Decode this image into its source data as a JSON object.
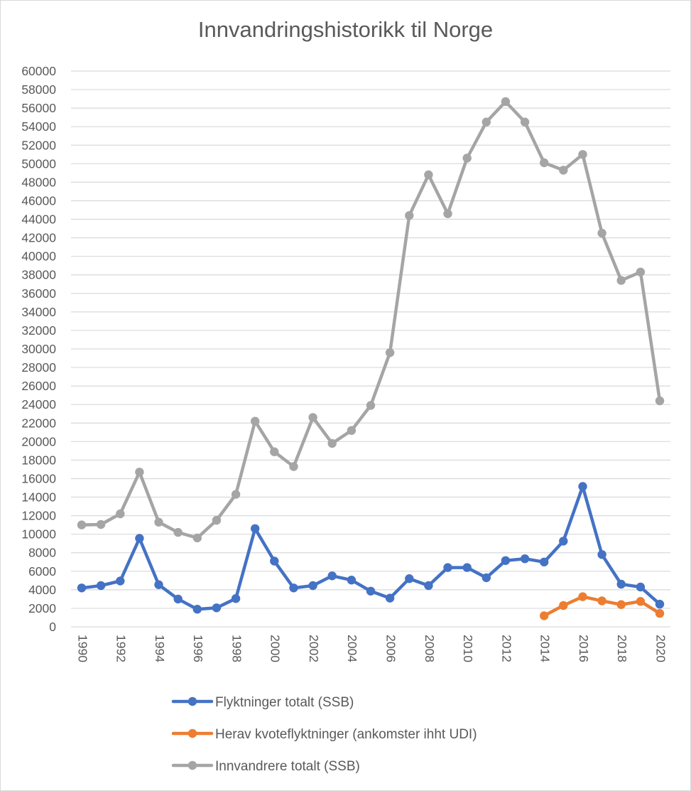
{
  "chart_data": {
    "type": "line",
    "title": "Innvandringshistorikk til Norge",
    "xlabel": "",
    "ylabel": "",
    "ylim": [
      0,
      60000
    ],
    "y_ticks": [
      0,
      2000,
      4000,
      6000,
      8000,
      10000,
      12000,
      14000,
      16000,
      18000,
      20000,
      22000,
      24000,
      26000,
      28000,
      30000,
      32000,
      34000,
      36000,
      38000,
      40000,
      42000,
      44000,
      46000,
      48000,
      50000,
      52000,
      54000,
      56000,
      58000,
      60000
    ],
    "x": [
      1990,
      1991,
      1992,
      1993,
      1994,
      1995,
      1996,
      1997,
      1998,
      1999,
      2000,
      2001,
      2002,
      2003,
      2004,
      2005,
      2006,
      2007,
      2008,
      2009,
      2010,
      2011,
      2012,
      2013,
      2014,
      2015,
      2016,
      2017,
      2018,
      2019,
      2020
    ],
    "x_tick_labels": [
      "1990",
      "1992",
      "1994",
      "1996",
      "1998",
      "2000",
      "2002",
      "2004",
      "2006",
      "2008",
      "2010",
      "2012",
      "2014",
      "2016",
      "2018",
      "2020"
    ],
    "grid": true,
    "legend_position": "bottom",
    "series": [
      {
        "name": "Flyktninger totalt (SSB)",
        "color": "#4472c4",
        "values": [
          4200,
          4450,
          4950,
          9550,
          4550,
          3000,
          1900,
          2050,
          3050,
          10600,
          7100,
          4200,
          4450,
          5500,
          5050,
          3850,
          3100,
          5200,
          4450,
          6400,
          6400,
          5300,
          7150,
          7350,
          7000,
          9250,
          15150,
          7800,
          4600,
          4300,
          2450
        ]
      },
      {
        "name": "Herav kvoteflyktninger (ankomster ihht UDI)",
        "color": "#ed7d31",
        "values": [
          null,
          null,
          null,
          null,
          null,
          null,
          null,
          null,
          null,
          null,
          null,
          null,
          null,
          null,
          null,
          null,
          null,
          null,
          null,
          null,
          null,
          null,
          null,
          null,
          1200,
          2300,
          3250,
          2800,
          2400,
          2750,
          1450
        ]
      },
      {
        "name": "Innvandrere totalt (SSB)",
        "color": "#a5a5a5",
        "values": [
          11000,
          11050,
          12200,
          16700,
          11300,
          10200,
          9600,
          11500,
          14300,
          22200,
          18900,
          17300,
          22600,
          19800,
          21200,
          23900,
          29600,
          44400,
          48800,
          44600,
          50600,
          54500,
          56700,
          54500,
          50100,
          49300,
          51000,
          42500,
          37400,
          38300,
          24400
        ]
      }
    ]
  }
}
